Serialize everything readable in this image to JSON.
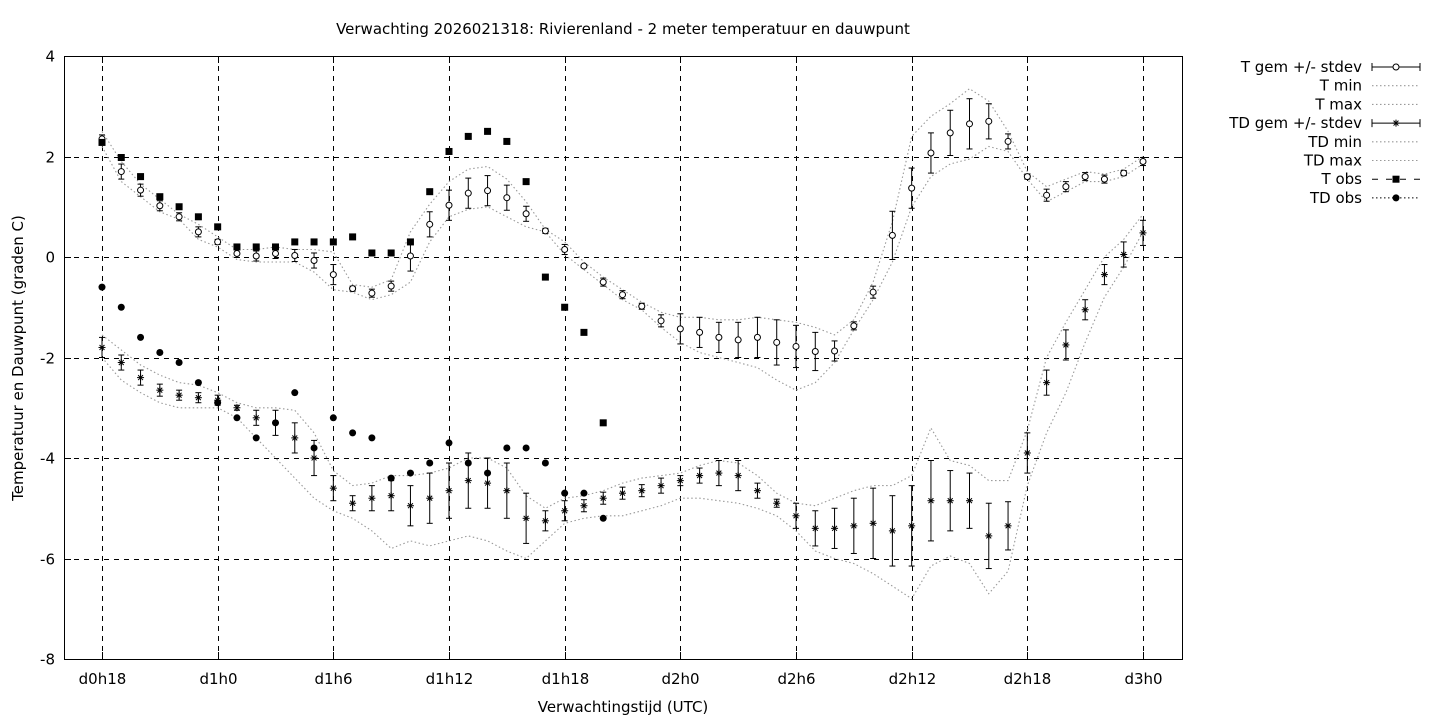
{
  "chart_data": {
    "type": "scatter",
    "title": "Verwachting 2026021318: Rivierenland - 2 meter temperatuur en dauwpunt",
    "xlabel": "Verwachtingstijd (UTC)",
    "ylabel": "Temperatuur en Dauwpunt (graden C)",
    "xlim": [
      18,
      72
    ],
    "ylim": [
      -8,
      4
    ],
    "grid": true,
    "legend_position": "outside-top-right",
    "x_ticks": [
      {
        "x": 18,
        "label": "d0h18"
      },
      {
        "x": 24,
        "label": "d1h0"
      },
      {
        "x": 30,
        "label": "d1h6"
      },
      {
        "x": 36,
        "label": "d1h12"
      },
      {
        "x": 42,
        "label": "d1h18"
      },
      {
        "x": 48,
        "label": "d2h0"
      },
      {
        "x": 54,
        "label": "d2h6"
      },
      {
        "x": 60,
        "label": "d2h12"
      },
      {
        "x": 66,
        "label": "d2h18"
      },
      {
        "x": 72,
        "label": "d3h0"
      }
    ],
    "y_ticks": [
      {
        "y": -8,
        "label": "-8"
      },
      {
        "y": -6,
        "label": "-6"
      },
      {
        "y": -4,
        "label": "-4"
      },
      {
        "y": -2,
        "label": "-2"
      },
      {
        "y": 0,
        "label": "0"
      },
      {
        "y": 2,
        "label": "2"
      },
      {
        "y": 4,
        "label": "4"
      }
    ],
    "series": [
      {
        "name": "T gem +/- stdev",
        "style": "errorbars-open-circle",
        "x": [
          18,
          19,
          20,
          21,
          22,
          23,
          24,
          25,
          26,
          27,
          28,
          29,
          30,
          31,
          32,
          33,
          34,
          35,
          36,
          37,
          38,
          39,
          40,
          41,
          42,
          43,
          44,
          45,
          46,
          47,
          48,
          49,
          50,
          51,
          52,
          53,
          54,
          55,
          56,
          57,
          58,
          59,
          60,
          61,
          62,
          63,
          64,
          65,
          66,
          67,
          68,
          69,
          70,
          71,
          72
        ],
        "y": [
          2.35,
          1.7,
          1.33,
          1.02,
          0.8,
          0.5,
          0.3,
          0.07,
          0.02,
          0.07,
          0.03,
          -0.07,
          -0.35,
          -0.63,
          -0.72,
          -0.58,
          0.02,
          0.65,
          1.03,
          1.27,
          1.32,
          1.18,
          0.86,
          0.52,
          0.15,
          -0.18,
          -0.5,
          -0.75,
          -0.98,
          -1.27,
          -1.43,
          -1.5,
          -1.6,
          -1.65,
          -1.6,
          -1.7,
          -1.78,
          -1.88,
          -1.87,
          -1.37,
          -0.7,
          0.43,
          1.37,
          2.07,
          2.47,
          2.65,
          2.7,
          2.3,
          1.6,
          1.23,
          1.4,
          1.6,
          1.55,
          1.67,
          1.9
        ],
        "stdev": [
          0.08,
          0.15,
          0.12,
          0.1,
          0.08,
          0.1,
          0.05,
          0.08,
          0.1,
          0.1,
          0.12,
          0.15,
          0.2,
          0.05,
          0.08,
          0.1,
          0.3,
          0.25,
          0.3,
          0.3,
          0.3,
          0.25,
          0.15,
          0.05,
          0.1,
          0.03,
          0.08,
          0.08,
          0.06,
          0.12,
          0.3,
          0.3,
          0.3,
          0.35,
          0.4,
          0.45,
          0.42,
          0.38,
          0.2,
          0.08,
          0.12,
          0.48,
          0.4,
          0.4,
          0.45,
          0.5,
          0.35,
          0.15,
          0.05,
          0.12,
          0.1,
          0.08,
          0.08,
          0.05,
          0.08
        ]
      },
      {
        "name": "T min",
        "style": "dotted-line",
        "x": [
          18,
          19,
          20,
          21,
          22,
          23,
          24,
          25,
          26,
          27,
          28,
          29,
          30,
          31,
          32,
          33,
          34,
          35,
          36,
          37,
          38,
          39,
          40,
          41,
          42,
          43,
          44,
          45,
          46,
          47,
          48,
          49,
          50,
          51,
          52,
          53,
          54,
          55,
          56,
          57,
          58,
          59,
          60,
          61,
          62,
          63,
          64,
          65,
          66,
          67,
          68,
          69,
          70,
          71,
          72
        ],
        "y": [
          2.2,
          1.5,
          1.2,
          0.9,
          0.75,
          0.35,
          0.2,
          -0.05,
          -0.1,
          -0.1,
          -0.1,
          -0.3,
          -0.65,
          -0.7,
          -0.85,
          -0.75,
          -0.5,
          0.3,
          0.8,
          0.95,
          1.0,
          0.8,
          0.6,
          0.5,
          0.05,
          -0.25,
          -0.55,
          -0.85,
          -1.05,
          -1.4,
          -1.7,
          -1.9,
          -2.0,
          -2.1,
          -2.2,
          -2.45,
          -2.65,
          -2.5,
          -2.1,
          -1.45,
          -0.85,
          -0.1,
          1.0,
          1.6,
          1.85,
          1.95,
          2.2,
          2.1,
          1.55,
          1.1,
          1.3,
          1.5,
          1.5,
          1.6,
          1.85
        ]
      },
      {
        "name": "T max",
        "style": "dotted-line",
        "x": [
          18,
          19,
          20,
          21,
          22,
          23,
          24,
          25,
          26,
          27,
          28,
          29,
          30,
          31,
          32,
          33,
          34,
          35,
          36,
          37,
          38,
          39,
          40,
          41,
          42,
          43,
          44,
          45,
          46,
          47,
          48,
          49,
          50,
          51,
          52,
          53,
          54,
          55,
          56,
          57,
          58,
          59,
          60,
          61,
          62,
          63,
          64,
          65,
          66,
          67,
          68,
          69,
          70,
          71,
          72
        ],
        "y": [
          2.5,
          1.9,
          1.45,
          1.15,
          0.85,
          0.65,
          0.4,
          0.15,
          0.15,
          0.2,
          0.15,
          0.15,
          0.1,
          -0.55,
          -0.6,
          -0.45,
          0.5,
          1.05,
          1.5,
          1.75,
          1.8,
          1.55,
          1.1,
          0.55,
          0.3,
          -0.1,
          -0.4,
          -0.65,
          -0.9,
          -1.1,
          -1.2,
          -1.2,
          -1.25,
          -1.25,
          -1.2,
          -1.25,
          -1.3,
          -1.4,
          -1.55,
          -1.25,
          -0.5,
          0.7,
          2.4,
          2.8,
          3.05,
          3.35,
          3.1,
          2.5,
          1.7,
          1.4,
          1.55,
          1.7,
          1.65,
          1.75,
          2.0
        ]
      },
      {
        "name": "TD gem +/- stdev",
        "style": "errorbars-star",
        "x": [
          18,
          19,
          20,
          21,
          22,
          23,
          24,
          25,
          26,
          27,
          28,
          29,
          30,
          31,
          32,
          33,
          34,
          35,
          36,
          37,
          38,
          39,
          40,
          41,
          42,
          43,
          44,
          45,
          46,
          47,
          48,
          49,
          50,
          51,
          52,
          53,
          54,
          55,
          56,
          57,
          58,
          59,
          60,
          61,
          62,
          63,
          64,
          65,
          66,
          67,
          68,
          69,
          70,
          71,
          72
        ],
        "y": [
          -1.8,
          -2.1,
          -2.4,
          -2.65,
          -2.75,
          -2.8,
          -2.85,
          -3.0,
          -3.2,
          -3.3,
          -3.6,
          -4.0,
          -4.6,
          -4.9,
          -4.8,
          -4.75,
          -4.95,
          -4.8,
          -4.65,
          -4.45,
          -4.5,
          -4.65,
          -5.2,
          -5.25,
          -5.05,
          -4.95,
          -4.8,
          -4.7,
          -4.65,
          -4.55,
          -4.45,
          -4.35,
          -4.3,
          -4.35,
          -4.65,
          -4.9,
          -5.15,
          -5.4,
          -5.4,
          -5.35,
          -5.3,
          -5.45,
          -5.35,
          -4.85,
          -4.85,
          -4.85,
          -5.55,
          -5.35,
          -3.9,
          -2.5,
          -1.75,
          -1.05,
          -0.35,
          0.05,
          0.48
        ],
        "stdev": [
          0.2,
          0.15,
          0.15,
          0.12,
          0.1,
          0.1,
          0.1,
          0.05,
          0.15,
          0.25,
          0.3,
          0.35,
          0.25,
          0.15,
          0.25,
          0.3,
          0.4,
          0.5,
          0.55,
          0.55,
          0.5,
          0.55,
          0.5,
          0.2,
          0.2,
          0.12,
          0.12,
          0.12,
          0.12,
          0.15,
          0.1,
          0.15,
          0.25,
          0.3,
          0.15,
          0.08,
          0.25,
          0.35,
          0.4,
          0.55,
          0.7,
          0.7,
          0.8,
          0.8,
          0.6,
          0.55,
          0.65,
          0.48,
          0.4,
          0.25,
          0.3,
          0.2,
          0.2,
          0.25,
          0.25
        ]
      },
      {
        "name": "TD min",
        "style": "dotted-line",
        "x": [
          18,
          19,
          20,
          21,
          22,
          23,
          24,
          25,
          26,
          27,
          28,
          29,
          30,
          31,
          32,
          33,
          34,
          35,
          36,
          37,
          38,
          39,
          40,
          41,
          42,
          43,
          44,
          45,
          46,
          47,
          48,
          49,
          50,
          51,
          52,
          53,
          54,
          55,
          56,
          57,
          58,
          59,
          60,
          61,
          62,
          63,
          64,
          65,
          66,
          67,
          68,
          69,
          70,
          71,
          72
        ],
        "y": [
          -2.0,
          -2.45,
          -2.7,
          -2.9,
          -3.0,
          -3.0,
          -3.0,
          -3.2,
          -3.6,
          -4.0,
          -4.4,
          -4.8,
          -5.05,
          -5.2,
          -5.45,
          -5.8,
          -5.65,
          -5.75,
          -5.65,
          -5.55,
          -5.65,
          -5.85,
          -6.0,
          -5.65,
          -5.3,
          -5.2,
          -5.15,
          -5.15,
          -5.05,
          -4.95,
          -4.8,
          -4.8,
          -4.85,
          -4.9,
          -5.0,
          -5.15,
          -5.45,
          -5.85,
          -6.0,
          -6.1,
          -6.3,
          -6.55,
          -6.8,
          -6.15,
          -5.95,
          -6.1,
          -6.7,
          -6.25,
          -4.55,
          -3.5,
          -2.7,
          -1.7,
          -0.8,
          -0.2,
          0.5
        ]
      },
      {
        "name": "TD max",
        "style": "dotted-line",
        "x": [
          18,
          19,
          20,
          21,
          22,
          23,
          24,
          25,
          26,
          27,
          28,
          29,
          30,
          31,
          32,
          33,
          34,
          35,
          36,
          37,
          38,
          39,
          40,
          41,
          42,
          43,
          44,
          45,
          46,
          47,
          48,
          49,
          50,
          51,
          52,
          53,
          54,
          55,
          56,
          57,
          58,
          59,
          60,
          61,
          62,
          63,
          64,
          65,
          66,
          67,
          68,
          69,
          70,
          71,
          72
        ],
        "y": [
          -1.55,
          -1.85,
          -2.15,
          -2.35,
          -2.5,
          -2.55,
          -2.7,
          -2.9,
          -3.0,
          -3.0,
          -3.05,
          -3.5,
          -4.25,
          -4.55,
          -4.5,
          -4.35,
          -4.35,
          -4.3,
          -4.2,
          -4.0,
          -4.0,
          -4.2,
          -4.75,
          -5.0,
          -4.8,
          -4.75,
          -4.65,
          -4.5,
          -4.4,
          -4.35,
          -4.3,
          -4.15,
          -4.05,
          -4.1,
          -4.35,
          -4.7,
          -4.9,
          -4.95,
          -4.8,
          -4.65,
          -4.55,
          -4.55,
          -4.35,
          -3.4,
          -4.05,
          -4.15,
          -4.45,
          -4.45,
          -3.45,
          -2.0,
          -1.3,
          -0.65,
          0.0,
          0.35,
          0.85
        ]
      },
      {
        "name": "T obs",
        "style": "filled-square",
        "x": [
          18,
          19,
          20,
          21,
          22,
          23,
          24,
          25,
          26,
          27,
          28,
          29,
          30,
          31,
          32,
          33,
          34,
          35,
          36,
          37,
          38,
          39,
          40,
          41,
          42,
          43,
          44
        ],
        "y": [
          2.28,
          1.98,
          1.6,
          1.2,
          1.0,
          0.8,
          0.6,
          0.2,
          0.2,
          0.2,
          0.3,
          0.3,
          0.3,
          0.4,
          0.08,
          0.08,
          0.3,
          1.3,
          2.1,
          2.4,
          2.5,
          2.3,
          1.5,
          -0.4,
          -1.0,
          -1.5,
          -3.3
        ]
      },
      {
        "name": "TD obs",
        "style": "filled-circle",
        "x": [
          18,
          19,
          20,
          21,
          22,
          23,
          24,
          25,
          26,
          27,
          28,
          29,
          30,
          31,
          32,
          33,
          34,
          35,
          36,
          37,
          38,
          39,
          40,
          41,
          42,
          43,
          44
        ],
        "y": [
          -0.6,
          -1.0,
          -1.6,
          -1.9,
          -2.1,
          -2.5,
          -2.9,
          -3.2,
          -3.6,
          -3.3,
          -2.7,
          -3.8,
          -3.2,
          -3.5,
          -3.6,
          -4.4,
          -4.3,
          -4.1,
          -3.7,
          -4.1,
          -4.3,
          -3.8,
          -3.8,
          -4.1,
          -4.7,
          -4.7,
          -5.2
        ]
      }
    ]
  }
}
